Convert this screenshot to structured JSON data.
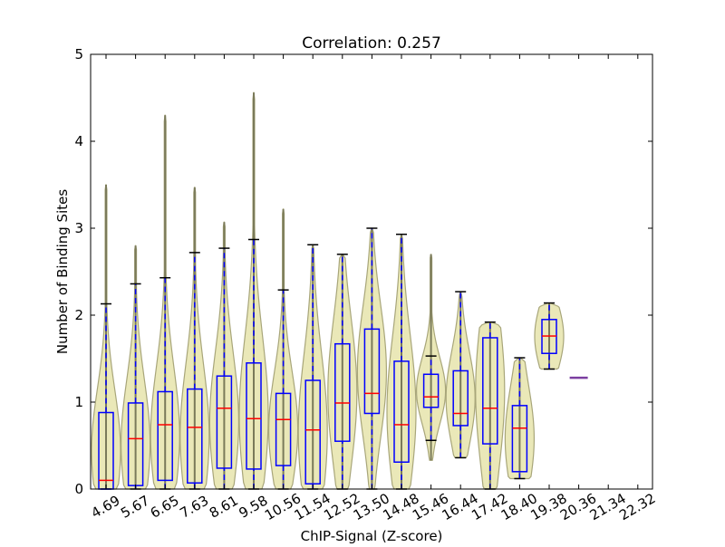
{
  "chart_data": {
    "type": "violin+box",
    "title": "Correlation: 0.257",
    "xlabel": "ChIP-Signal (Z-score)",
    "ylabel": "Number of Binding Sites",
    "ylim": [
      0,
      5
    ],
    "yticks": [
      "0",
      "1",
      "2",
      "3",
      "4",
      "5"
    ],
    "grid": false,
    "categories": [
      "4.69",
      "5.67",
      "6.65",
      "7.63",
      "8.61",
      "9.58",
      "10.56",
      "11.54",
      "12.52",
      "13.50",
      "14.48",
      "15.46",
      "16.44",
      "17.42",
      "18.40",
      "19.38",
      "20.36",
      "21.34",
      "22.32"
    ],
    "stats": [
      {
        "min": 0,
        "q1": 0,
        "median": 0.1,
        "q3": 0.88,
        "whisker_low": 0,
        "whisker_high": 2.13,
        "max": 3.5
      },
      {
        "min": 0,
        "q1": 0.04,
        "median": 0.58,
        "q3": 0.99,
        "whisker_low": 0,
        "whisker_high": 2.36,
        "max": 2.8
      },
      {
        "min": 0,
        "q1": 0.1,
        "median": 0.74,
        "q3": 1.12,
        "whisker_low": 0,
        "whisker_high": 2.43,
        "max": 4.3
      },
      {
        "min": 0,
        "q1": 0.07,
        "median": 0.71,
        "q3": 1.15,
        "whisker_low": 0,
        "whisker_high": 2.72,
        "max": 3.47
      },
      {
        "min": 0,
        "q1": 0.24,
        "median": 0.93,
        "q3": 1.3,
        "whisker_low": 0,
        "whisker_high": 2.77,
        "max": 3.07
      },
      {
        "min": 0,
        "q1": 0.23,
        "median": 0.81,
        "q3": 1.45,
        "whisker_low": 0,
        "whisker_high": 2.87,
        "max": 4.56
      },
      {
        "min": 0,
        "q1": 0.27,
        "median": 0.8,
        "q3": 1.1,
        "whisker_low": 0,
        "whisker_high": 2.29,
        "max": 3.22
      },
      {
        "min": 0,
        "q1": 0.06,
        "median": 0.68,
        "q3": 1.25,
        "whisker_low": 0,
        "whisker_high": 2.81,
        "max": 2.81
      },
      {
        "min": 0,
        "q1": 0.55,
        "median": 0.99,
        "q3": 1.67,
        "whisker_low": 0,
        "whisker_high": 2.7,
        "max": 2.7
      },
      {
        "min": 0,
        "q1": 0.87,
        "median": 1.1,
        "q3": 1.84,
        "whisker_low": 0,
        "whisker_high": 3.0,
        "max": 3.0
      },
      {
        "min": 0,
        "q1": 0.31,
        "median": 0.74,
        "q3": 1.47,
        "whisker_low": 0,
        "whisker_high": 2.93,
        "max": 2.93
      },
      {
        "min": 0.33,
        "q1": 0.94,
        "median": 1.06,
        "q3": 1.32,
        "whisker_low": 0.56,
        "whisker_high": 1.53,
        "max": 2.7
      },
      {
        "min": 0.36,
        "q1": 0.73,
        "median": 0.87,
        "q3": 1.36,
        "whisker_low": 0.36,
        "whisker_high": 2.27,
        "max": 2.27
      },
      {
        "min": 0,
        "q1": 0.52,
        "median": 0.93,
        "q3": 1.74,
        "whisker_low": 0,
        "whisker_high": 1.92,
        "max": 1.92
      },
      {
        "min": 0.12,
        "q1": 0.2,
        "median": 0.7,
        "q3": 0.96,
        "whisker_low": 0.12,
        "whisker_high": 1.51,
        "max": 1.51
      },
      {
        "min": 1.38,
        "q1": 1.56,
        "median": 1.76,
        "q3": 1.95,
        "whisker_low": 1.38,
        "whisker_high": 2.14,
        "max": 2.14
      },
      {
        "min": 1.28,
        "q1": 1.28,
        "median": 1.28,
        "q3": 1.28,
        "whisker_low": 1.28,
        "whisker_high": 1.28,
        "max": 1.28
      },
      null,
      null
    ],
    "colors": {
      "violin_fill": "#e8e6b0",
      "violin_edge": "#a8a67a",
      "box": "#0000ff",
      "median": "#ff0000",
      "whisker_cap": "#000000",
      "single_value": "#7b3fa0"
    }
  }
}
